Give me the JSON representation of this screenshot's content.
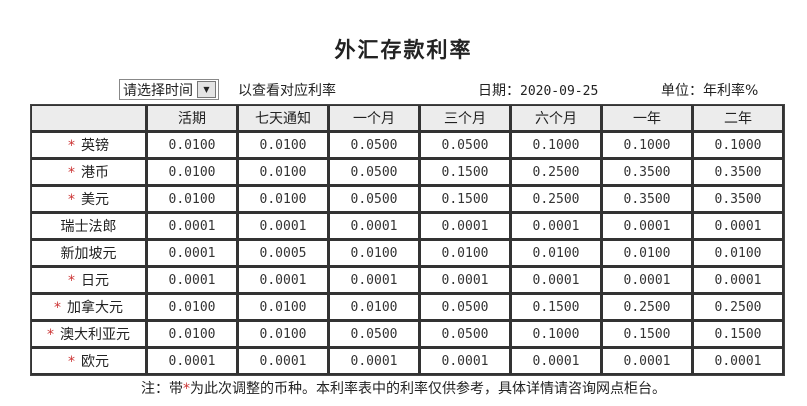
{
  "title": "外汇存款利率",
  "toolbar": {
    "select_value": "请选择时间",
    "hint": "以查看对应利率",
    "date_label": "日期：",
    "date_value": "2020-09-25",
    "unit_label": "单位：年利率%"
  },
  "table": {
    "columns": [
      "",
      "活期",
      "七天通知",
      "一个月",
      "三个月",
      "六个月",
      "一年",
      "二年"
    ],
    "rows": [
      {
        "currency": "英镑",
        "adjusted": true,
        "marker": "*",
        "values": [
          "0.0100",
          "0.0100",
          "0.0500",
          "0.0500",
          "0.1000",
          "0.1000",
          "0.1000"
        ]
      },
      {
        "currency": "港币",
        "adjusted": true,
        "marker": "*",
        "values": [
          "0.0100",
          "0.0100",
          "0.0500",
          "0.1500",
          "0.2500",
          "0.3500",
          "0.3500"
        ]
      },
      {
        "currency": "美元",
        "adjusted": true,
        "marker": "*",
        "values": [
          "0.0100",
          "0.0100",
          "0.0500",
          "0.1500",
          "0.2500",
          "0.3500",
          "0.3500"
        ]
      },
      {
        "currency": "瑞士法郎",
        "adjusted": false,
        "marker": "",
        "values": [
          "0.0001",
          "0.0001",
          "0.0001",
          "0.0001",
          "0.0001",
          "0.0001",
          "0.0001"
        ]
      },
      {
        "currency": "新加坡元",
        "adjusted": false,
        "marker": "",
        "values": [
          "0.0001",
          "0.0005",
          "0.0100",
          "0.0100",
          "0.0100",
          "0.0100",
          "0.0100"
        ]
      },
      {
        "currency": "日元",
        "adjusted": true,
        "marker": "*",
        "values": [
          "0.0001",
          "0.0001",
          "0.0001",
          "0.0001",
          "0.0001",
          "0.0001",
          "0.0001"
        ]
      },
      {
        "currency": "加拿大元",
        "adjusted": true,
        "marker": "*",
        "values": [
          "0.0100",
          "0.0100",
          "0.0100",
          "0.0500",
          "0.1500",
          "0.2500",
          "0.2500"
        ]
      },
      {
        "currency": "澳大利亚元",
        "adjusted": true,
        "marker": "*",
        "values": [
          "0.0100",
          "0.0100",
          "0.0500",
          "0.0500",
          "0.1000",
          "0.1500",
          "0.1500"
        ]
      },
      {
        "currency": "欧元",
        "adjusted": true,
        "marker": "*",
        "values": [
          "0.0001",
          "0.0001",
          "0.0001",
          "0.0001",
          "0.0001",
          "0.0001",
          "0.0001"
        ]
      }
    ]
  },
  "note": {
    "prefix": "注：带",
    "marker": "*",
    "suffix": "为此次调整的币种。本利率表中的利率仅供参考，具体详情请咨询网点柜台。"
  },
  "colors": {
    "marker": "#cc3333",
    "header_bg": "#ececec"
  }
}
